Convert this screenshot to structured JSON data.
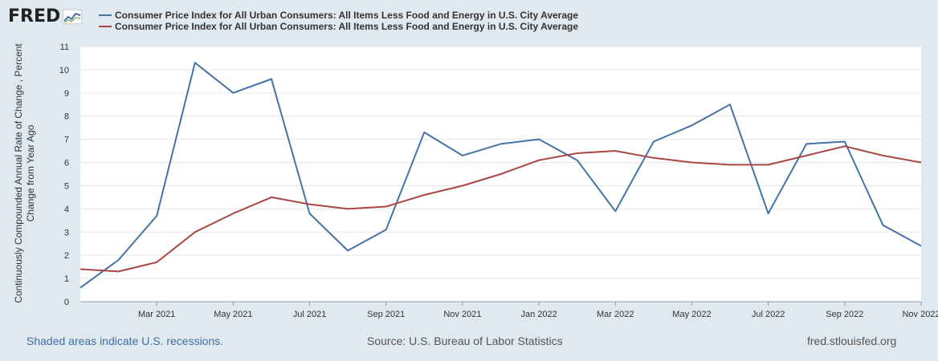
{
  "logo": {
    "text": "FRED",
    "icon": "fred-graph-icon"
  },
  "legend": [
    {
      "label": "Consumer Price Index for All Urban Consumers: All Items Less Food and Energy in U.S. City Average",
      "color": "#4572a7"
    },
    {
      "label": "Consumer Price Index for All Urban Consumers: All Items Less Food and Energy in U.S. City Average",
      "color": "#aa4643"
    }
  ],
  "ylabel_lines": [
    "Continuously Compounded Annual Rate of Change , Percent",
    "Change from Year Ago"
  ],
  "footer": {
    "recessions": "Shaded areas indicate U.S. recessions.",
    "source": "Source: U.S. Bureau of Labor Statistics",
    "site": "fred.stlouisfed.org"
  },
  "chart_data": {
    "type": "line",
    "ylim": [
      0,
      11
    ],
    "yticks": [
      0,
      1,
      2,
      3,
      4,
      5,
      6,
      7,
      8,
      9,
      10,
      11
    ],
    "grid": true,
    "x": [
      "2021-01",
      "2021-02",
      "2021-03",
      "2021-04",
      "2021-05",
      "2021-06",
      "2021-07",
      "2021-08",
      "2021-09",
      "2021-10",
      "2021-11",
      "2021-12",
      "2022-01",
      "2022-02",
      "2022-03",
      "2022-04",
      "2022-05",
      "2022-06",
      "2022-07",
      "2022-08",
      "2022-09",
      "2022-10",
      "2022-11"
    ],
    "xtick_labels": [
      {
        "x": "2021-03",
        "label": "Mar 2021"
      },
      {
        "x": "2021-05",
        "label": "May 2021"
      },
      {
        "x": "2021-07",
        "label": "Jul 2021"
      },
      {
        "x": "2021-09",
        "label": "Sep 2021"
      },
      {
        "x": "2021-11",
        "label": "Nov 2021"
      },
      {
        "x": "2022-01",
        "label": "Jan 2022"
      },
      {
        "x": "2022-03",
        "label": "Mar 2022"
      },
      {
        "x": "2022-05",
        "label": "May 2022"
      },
      {
        "x": "2022-07",
        "label": "Jul 2022"
      },
      {
        "x": "2022-09",
        "label": "Sep 2022"
      },
      {
        "x": "2022-11",
        "label": "Nov 2022"
      }
    ],
    "series": [
      {
        "color": "#4572a7",
        "values": [
          0.6,
          1.8,
          3.7,
          10.3,
          9.0,
          9.6,
          3.8,
          2.2,
          3.1,
          7.3,
          6.3,
          6.8,
          7.0,
          6.1,
          3.9,
          6.9,
          7.6,
          8.5,
          3.8,
          6.8,
          6.9,
          3.3,
          2.4
        ]
      },
      {
        "color": "#aa4643",
        "values": [
          1.4,
          1.3,
          1.7,
          3.0,
          3.8,
          4.5,
          4.2,
          4.0,
          4.1,
          4.6,
          5.0,
          5.5,
          6.1,
          6.4,
          6.5,
          6.2,
          6.0,
          5.9,
          5.9,
          6.3,
          6.7,
          6.3,
          6.0
        ]
      }
    ]
  }
}
